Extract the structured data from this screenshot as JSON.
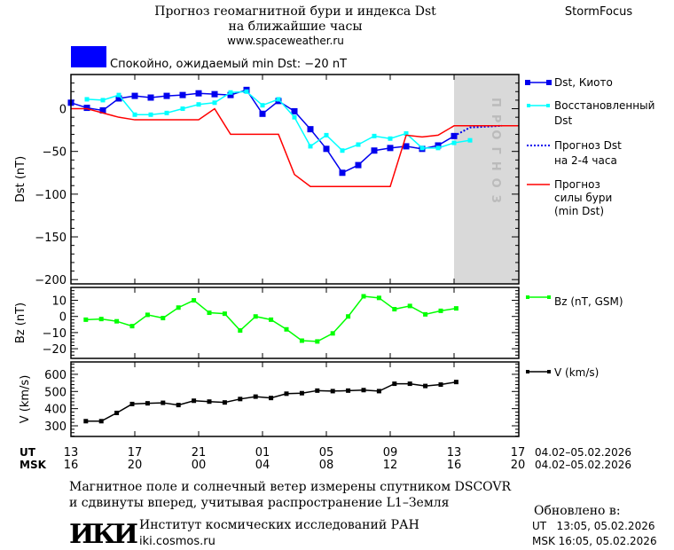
{
  "header": {
    "title_line1": "Прогноз геомагнитной бури и индекса Dst",
    "title_line2": "на ближайшие часы",
    "url": "www.spaceweather.ru",
    "brand": "StormFocus",
    "status_text": "Спокойно, ожидаемый min Dst: −20 nT",
    "status_color": "#0000ff"
  },
  "forecast_region_label": "ПРОГНОЗ",
  "legend": {
    "dst_kyoto": "Dst, Киото",
    "reconstructed_1": "Восстановленный",
    "reconstructed_2": "Dst",
    "forecast_1": "Прогноз Dst",
    "forecast_2": "на 2-4 часа",
    "storm_1": "Прогноз",
    "storm_2": "силы бури",
    "storm_3": "(min Dst)",
    "bz": "Bz (nT, GSM)",
    "v": "V (km/s)"
  },
  "time_axis": {
    "ut_label": "UT",
    "msk_label": "MSK",
    "ut_ticks": [
      "13",
      "17",
      "21",
      "01",
      "05",
      "09",
      "13",
      "17"
    ],
    "msk_ticks": [
      "16",
      "20",
      "00",
      "04",
      "08",
      "12",
      "16",
      "20"
    ],
    "date_range_ut": "04.02–05.02.2026",
    "date_range_msk": "04.02–05.02.2026"
  },
  "footer": {
    "note_line1": "Магнитное поле и солнечный ветер измерены спутником DSCOVR",
    "note_line2": "и сдвинуты вперед, учитывая распространение L1–Земля",
    "logo_text": "ИКИ",
    "institute": "Институт космических исследований РАН",
    "site": "iki.cosmos.ru",
    "updated_label": "Обновлено в:",
    "updated_ut": "UT   13:05, 05.02.2026",
    "updated_msk": "MSK 16:05, 05.02.2026"
  },
  "chart_data": [
    {
      "type": "line",
      "ylabel": "Dst (nT)",
      "ylim": [
        -205,
        40
      ],
      "yticks": [
        0,
        -50,
        -100,
        -150,
        -200
      ],
      "xlim": [
        "04.02 13:00",
        "05.02 17:00"
      ],
      "forecast_region": [
        "05.02 13:00",
        "05.02 17:00"
      ],
      "series": [
        {
          "name": "Dst, Киото",
          "color": "#0000ee",
          "marker": "square",
          "times": [
            "04.02 13:00",
            "04.02 14:00",
            "04.02 15:00",
            "04.02 16:00",
            "04.02 17:00",
            "04.02 18:00",
            "04.02 19:00",
            "04.02 20:00",
            "04.02 21:00",
            "04.02 22:00",
            "04.02 23:00",
            "05.02 00:00",
            "05.02 01:00",
            "05.02 02:00",
            "05.02 03:00",
            "05.02 04:00",
            "05.02 05:00",
            "05.02 06:00",
            "05.02 07:00",
            "05.02 08:00",
            "05.02 09:00",
            "05.02 10:00",
            "05.02 11:00",
            "05.02 12:00",
            "05.02 13:00"
          ],
          "values": [
            7,
            1,
            -2,
            12,
            15,
            13,
            15,
            16,
            18,
            17,
            16,
            22,
            -6,
            9,
            -3,
            -24,
            -47,
            -75,
            -66,
            -49,
            -46,
            -44,
            -47,
            -43,
            -32
          ]
        },
        {
          "name": "Восстановленный Dst",
          "color": "#00ffff",
          "marker": "square",
          "times": [
            "04.02 14:00",
            "04.02 15:00",
            "04.02 16:00",
            "04.02 17:00",
            "04.02 18:00",
            "04.02 19:00",
            "04.02 20:00",
            "04.02 21:00",
            "04.02 22:00",
            "04.02 23:00",
            "05.02 00:00",
            "05.02 01:00",
            "05.02 02:00",
            "05.02 03:00",
            "05.02 04:00",
            "05.02 05:00",
            "05.02 06:00",
            "05.02 07:00",
            "05.02 08:00",
            "05.02 09:00",
            "05.02 10:00",
            "05.02 11:00",
            "05.02 12:00",
            "05.02 13:00",
            "05.02 14:00"
          ],
          "values": [
            11,
            10,
            16,
            -7,
            -7,
            -5,
            0,
            5,
            7,
            19,
            20,
            4,
            11,
            -10,
            -44,
            -31,
            -49,
            -42,
            -32,
            -35,
            -29,
            -46,
            -46,
            -40,
            -37
          ]
        },
        {
          "name": "Прогноз Dst на 2-4 часа",
          "color": "#0000ee",
          "style": "dotted",
          "times": [
            "05.02 13:00",
            "05.02 14:00",
            "05.02 16:00"
          ],
          "values": [
            -32,
            -22,
            -20
          ]
        },
        {
          "name": "Прогноз силы бури (min Dst)",
          "color": "#ff0000",
          "style": "solid",
          "times": [
            "04.02 13:00",
            "04.02 14:00",
            "04.02 16:00",
            "04.02 17:00",
            "04.02 21:00",
            "04.02 22:00",
            "04.02 23:00",
            "05.02 02:00",
            "05.02 03:00",
            "05.02 04:00",
            "05.02 09:00",
            "05.02 10:00",
            "05.02 11:00",
            "05.02 12:00",
            "05.02 13:00",
            "05.02 17:00"
          ],
          "values": [
            0,
            0,
            -10,
            -13,
            -13,
            0,
            -30,
            -30,
            -77,
            -91,
            -91,
            -31,
            -33,
            -31,
            -20,
            -20
          ]
        }
      ]
    },
    {
      "type": "line",
      "ylabel": "Bz (nT)",
      "ylim": [
        -26,
        18
      ],
      "yticks": [
        10,
        0,
        -10,
        -20
      ],
      "series": [
        {
          "name": "Bz (nT, GSM)",
          "color": "#00ff00",
          "marker": "square",
          "times": [
            "04.02 13:56",
            "04.02 14:54",
            "04.02 15:52",
            "04.02 16:50",
            "04.02 17:48",
            "04.02 18:46",
            "04.02 19:44",
            "04.02 20:42",
            "04.02 21:40",
            "04.02 22:38",
            "04.02 23:36",
            "05.02 00:34",
            "05.02 01:32",
            "05.02 02:30",
            "05.02 03:28",
            "05.02 04:26",
            "05.02 05:24",
            "05.02 06:22",
            "05.02 07:20",
            "05.02 08:18",
            "05.02 09:16",
            "05.02 10:14",
            "05.02 11:12",
            "05.02 12:10",
            "05.02 13:08"
          ],
          "values": [
            -2,
            -1.6,
            -3,
            -6,
            1,
            -1,
            5.5,
            10,
            2.3,
            1.7,
            -8.7,
            0,
            -2,
            -8,
            -15,
            -15.5,
            -10.5,
            0,
            12.5,
            11.5,
            4.5,
            6.5,
            1.3,
            3.5,
            5
          ]
        }
      ]
    },
    {
      "type": "line",
      "ylabel": "V (km/s)",
      "ylim": [
        238,
        672
      ],
      "yticks": [
        600,
        500,
        400,
        300
      ],
      "series": [
        {
          "name": "V (km/s)",
          "color": "#000000",
          "marker": "square",
          "times": [
            "04.02 13:56",
            "04.02 14:54",
            "04.02 15:52",
            "04.02 16:50",
            "04.02 17:48",
            "04.02 18:46",
            "04.02 19:44",
            "04.02 20:42",
            "04.02 21:40",
            "04.02 22:38",
            "04.02 23:36",
            "05.02 00:34",
            "05.02 01:32",
            "05.02 02:30",
            "05.02 03:28",
            "05.02 04:26",
            "05.02 05:24",
            "05.02 06:22",
            "05.02 07:20",
            "05.02 08:18",
            "05.02 09:16",
            "05.02 10:14",
            "05.02 11:12",
            "05.02 12:10",
            "05.02 13:08"
          ],
          "values": [
            327,
            327,
            375,
            427,
            431,
            434,
            421,
            446,
            441,
            436,
            456,
            470,
            462,
            487,
            490,
            505,
            502,
            505,
            508,
            502,
            545,
            545,
            532,
            540,
            555
          ]
        }
      ]
    }
  ]
}
